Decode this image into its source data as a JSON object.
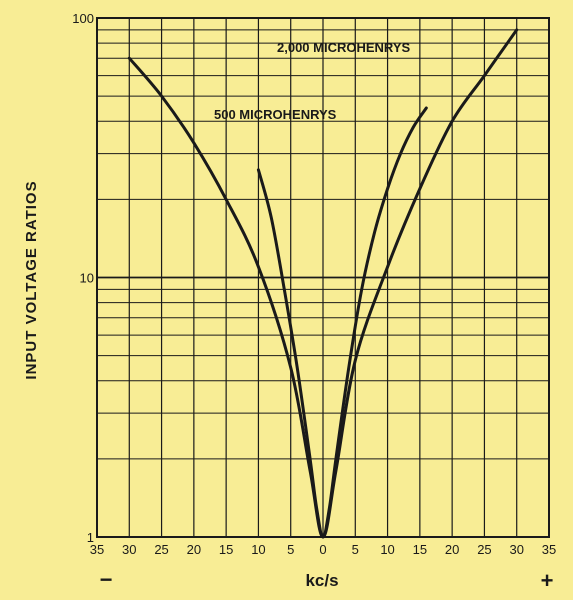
{
  "chart_data": {
    "type": "line",
    "ylabel": "INPUT VOLTAGE RATIOS",
    "xlabel": "kc/s",
    "x_sign_left": "−",
    "x_sign_right": "+",
    "yscale": "log",
    "ylim": [
      1,
      100
    ],
    "xlim": [
      -35,
      35
    ],
    "grid": true,
    "x_ticks": [
      {
        "value": -35,
        "label": "35"
      },
      {
        "value": -30,
        "label": "30"
      },
      {
        "value": -25,
        "label": "25"
      },
      {
        "value": -20,
        "label": "20"
      },
      {
        "value": -15,
        "label": "15"
      },
      {
        "value": -10,
        "label": "10"
      },
      {
        "value": -5,
        "label": "5"
      },
      {
        "value": 0,
        "label": "0"
      },
      {
        "value": 5,
        "label": "5"
      },
      {
        "value": 10,
        "label": "10"
      },
      {
        "value": 15,
        "label": "15"
      },
      {
        "value": 20,
        "label": "20"
      },
      {
        "value": 25,
        "label": "25"
      },
      {
        "value": 30,
        "label": "30"
      },
      {
        "value": 35,
        "label": "35"
      }
    ],
    "y_ticks": [
      {
        "value": 1,
        "label": "1"
      },
      {
        "value": 10,
        "label": "10"
      },
      {
        "value": 100,
        "label": "100"
      }
    ],
    "series": [
      {
        "name": "2,000 MICROHENRYS",
        "x": [
          -30,
          -25,
          -20,
          -15,
          -10,
          -5,
          -2,
          0,
          2,
          5,
          10,
          15,
          20,
          25,
          30
        ],
        "y": [
          70,
          50,
          33,
          20,
          11,
          4.5,
          1.8,
          1.0,
          1.8,
          4.8,
          11,
          22,
          40,
          60,
          90
        ]
      },
      {
        "name": "500 MICROHENRYS",
        "x": [
          -10,
          -8,
          -6,
          -4,
          -2,
          -1,
          0,
          1,
          2,
          4,
          6,
          8,
          10,
          12,
          14,
          16
        ],
        "y": [
          26,
          17,
          9,
          4.5,
          2.0,
          1.3,
          1.0,
          1.3,
          2.0,
          4.5,
          9,
          15,
          22,
          30,
          38,
          45
        ]
      }
    ]
  }
}
